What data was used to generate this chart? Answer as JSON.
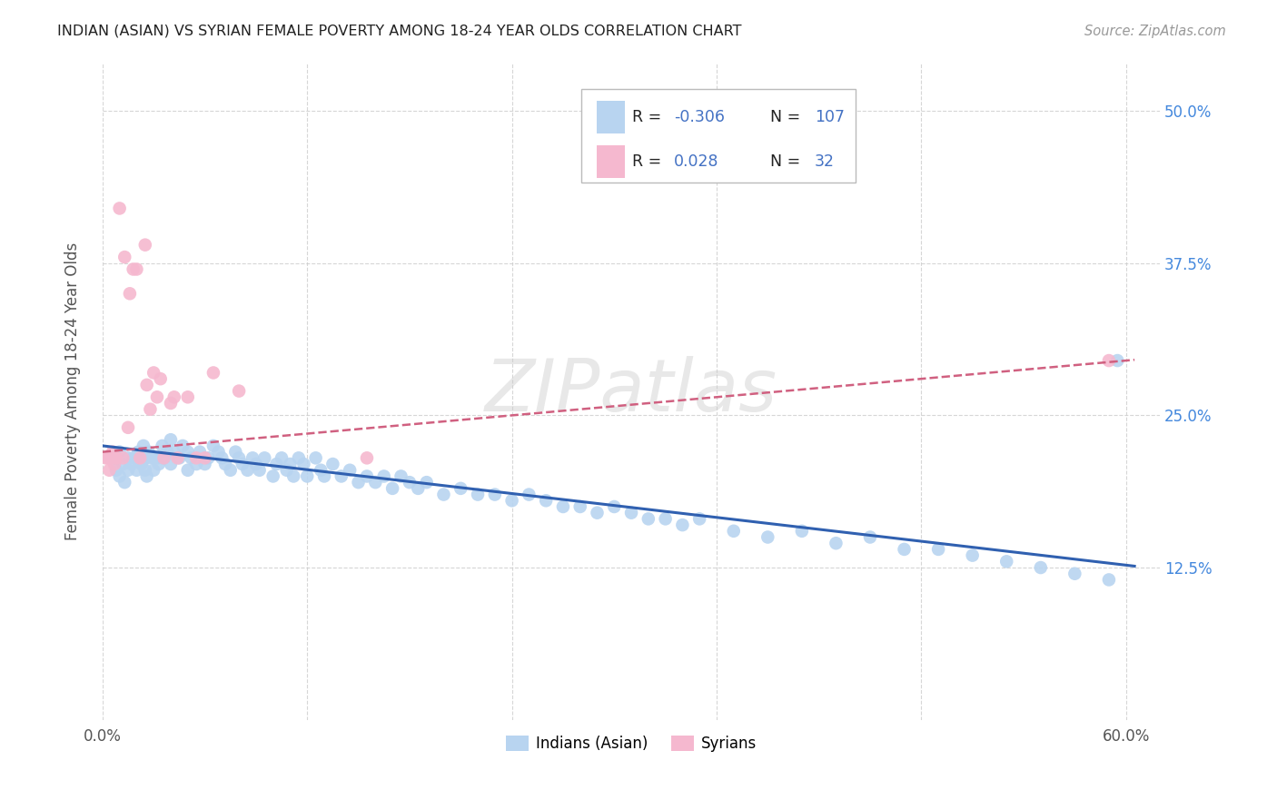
{
  "title": "INDIAN (ASIAN) VS SYRIAN FEMALE POVERTY AMONG 18-24 YEAR OLDS CORRELATION CHART",
  "source": "Source: ZipAtlas.com",
  "ylabel": "Female Poverty Among 18-24 Year Olds",
  "xlim": [
    0.0,
    0.62
  ],
  "ylim": [
    0.0,
    0.54
  ],
  "xticks": [
    0.0,
    0.12,
    0.24,
    0.36,
    0.48,
    0.6
  ],
  "xtick_labels": [
    "0.0%",
    "",
    "",
    "",
    "",
    "60.0%"
  ],
  "yticks": [
    0.125,
    0.25,
    0.375,
    0.5
  ],
  "ytick_labels": [
    "12.5%",
    "25.0%",
    "37.5%",
    "50.0%"
  ],
  "legend_indian_R": "-0.306",
  "legend_indian_N": "107",
  "legend_syrian_R": "0.028",
  "legend_syrian_N": "32",
  "indian_color": "#b8d4f0",
  "syrian_color": "#f5b8cf",
  "indian_line_color": "#3060b0",
  "syrian_line_color": "#d06080",
  "watermark": "ZIPatlas",
  "background_color": "#ffffff",
  "indian_x": [
    0.005,
    0.008,
    0.01,
    0.01,
    0.012,
    0.013,
    0.015,
    0.015,
    0.017,
    0.018,
    0.02,
    0.02,
    0.021,
    0.022,
    0.023,
    0.024,
    0.025,
    0.025,
    0.026,
    0.027,
    0.028,
    0.03,
    0.03,
    0.032,
    0.033,
    0.035,
    0.036,
    0.038,
    0.04,
    0.04,
    0.042,
    0.045,
    0.047,
    0.05,
    0.05,
    0.052,
    0.055,
    0.057,
    0.06,
    0.062,
    0.065,
    0.068,
    0.07,
    0.072,
    0.075,
    0.078,
    0.08,
    0.082,
    0.085,
    0.088,
    0.09,
    0.092,
    0.095,
    0.1,
    0.102,
    0.105,
    0.108,
    0.11,
    0.112,
    0.115,
    0.118,
    0.12,
    0.125,
    0.128,
    0.13,
    0.135,
    0.14,
    0.145,
    0.15,
    0.155,
    0.16,
    0.165,
    0.17,
    0.175,
    0.18,
    0.185,
    0.19,
    0.2,
    0.21,
    0.22,
    0.23,
    0.24,
    0.25,
    0.26,
    0.27,
    0.28,
    0.29,
    0.3,
    0.31,
    0.32,
    0.33,
    0.34,
    0.35,
    0.37,
    0.39,
    0.41,
    0.43,
    0.45,
    0.47,
    0.49,
    0.51,
    0.53,
    0.55,
    0.57,
    0.59,
    0.595,
    0.335
  ],
  "indian_y": [
    0.215,
    0.205,
    0.22,
    0.2,
    0.21,
    0.195,
    0.215,
    0.205,
    0.21,
    0.215,
    0.215,
    0.205,
    0.22,
    0.215,
    0.21,
    0.225,
    0.215,
    0.205,
    0.2,
    0.22,
    0.215,
    0.215,
    0.205,
    0.215,
    0.21,
    0.225,
    0.215,
    0.22,
    0.23,
    0.21,
    0.22,
    0.215,
    0.225,
    0.22,
    0.205,
    0.215,
    0.21,
    0.22,
    0.21,
    0.215,
    0.225,
    0.22,
    0.215,
    0.21,
    0.205,
    0.22,
    0.215,
    0.21,
    0.205,
    0.215,
    0.21,
    0.205,
    0.215,
    0.2,
    0.21,
    0.215,
    0.205,
    0.21,
    0.2,
    0.215,
    0.21,
    0.2,
    0.215,
    0.205,
    0.2,
    0.21,
    0.2,
    0.205,
    0.195,
    0.2,
    0.195,
    0.2,
    0.19,
    0.2,
    0.195,
    0.19,
    0.195,
    0.185,
    0.19,
    0.185,
    0.185,
    0.18,
    0.185,
    0.18,
    0.175,
    0.175,
    0.17,
    0.175,
    0.17,
    0.165,
    0.165,
    0.16,
    0.165,
    0.155,
    0.15,
    0.155,
    0.145,
    0.15,
    0.14,
    0.14,
    0.135,
    0.13,
    0.125,
    0.12,
    0.115,
    0.295,
    0.46
  ],
  "syrian_x": [
    0.002,
    0.003,
    0.004,
    0.005,
    0.006,
    0.007,
    0.008,
    0.01,
    0.012,
    0.013,
    0.015,
    0.016,
    0.018,
    0.02,
    0.022,
    0.025,
    0.026,
    0.028,
    0.03,
    0.032,
    0.034,
    0.036,
    0.04,
    0.042,
    0.044,
    0.05,
    0.055,
    0.06,
    0.065,
    0.08,
    0.155,
    0.59
  ],
  "syrian_y": [
    0.215,
    0.215,
    0.205,
    0.215,
    0.22,
    0.21,
    0.215,
    0.42,
    0.215,
    0.38,
    0.24,
    0.35,
    0.37,
    0.37,
    0.215,
    0.39,
    0.275,
    0.255,
    0.285,
    0.265,
    0.28,
    0.215,
    0.26,
    0.265,
    0.215,
    0.265,
    0.215,
    0.215,
    0.285,
    0.27,
    0.215,
    0.295
  ]
}
